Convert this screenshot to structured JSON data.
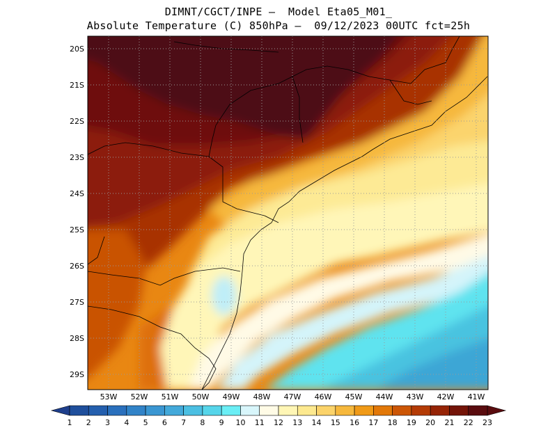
{
  "header": {
    "line1": "DIMNT/CGCT/INPE –  Model Eta05_M01_",
    "line2": "Absolute Temperature (C) 850hPa –  09/12/2023 00UTC fct=25h"
  },
  "map": {
    "lat_labels": [
      "20S",
      "21S",
      "22S",
      "23S",
      "24S",
      "25S",
      "26S",
      "27S",
      "28S",
      "29S"
    ],
    "lon_labels": [
      "53W",
      "52W",
      "51W",
      "50W",
      "49W",
      "48W",
      "47W",
      "46W",
      "45W",
      "44W",
      "43W",
      "42W",
      "41W"
    ],
    "region": "South-east / South Brazil"
  },
  "colorbar": {
    "labels": [
      "1",
      "2",
      "3",
      "4",
      "5",
      "6",
      "7",
      "8",
      "9",
      "10",
      "11",
      "12",
      "13",
      "14",
      "15",
      "16",
      "17",
      "18",
      "19",
      "20",
      "21",
      "22",
      "23"
    ],
    "colors": [
      "#1e3f8c",
      "#1f4f9c",
      "#245fae",
      "#2a70bd",
      "#3183c8",
      "#3a96d2",
      "#43a9da",
      "#4bbfe2",
      "#56d5ea",
      "#6aeef5",
      "#d8f6fb",
      "#fffbe6",
      "#fff6b5",
      "#fde98f",
      "#fbd36a",
      "#f6b83c",
      "#f09a17",
      "#e27808",
      "#cc5605",
      "#b43b05",
      "#962406",
      "#741408",
      "#5a0c0f"
    ]
  }
}
